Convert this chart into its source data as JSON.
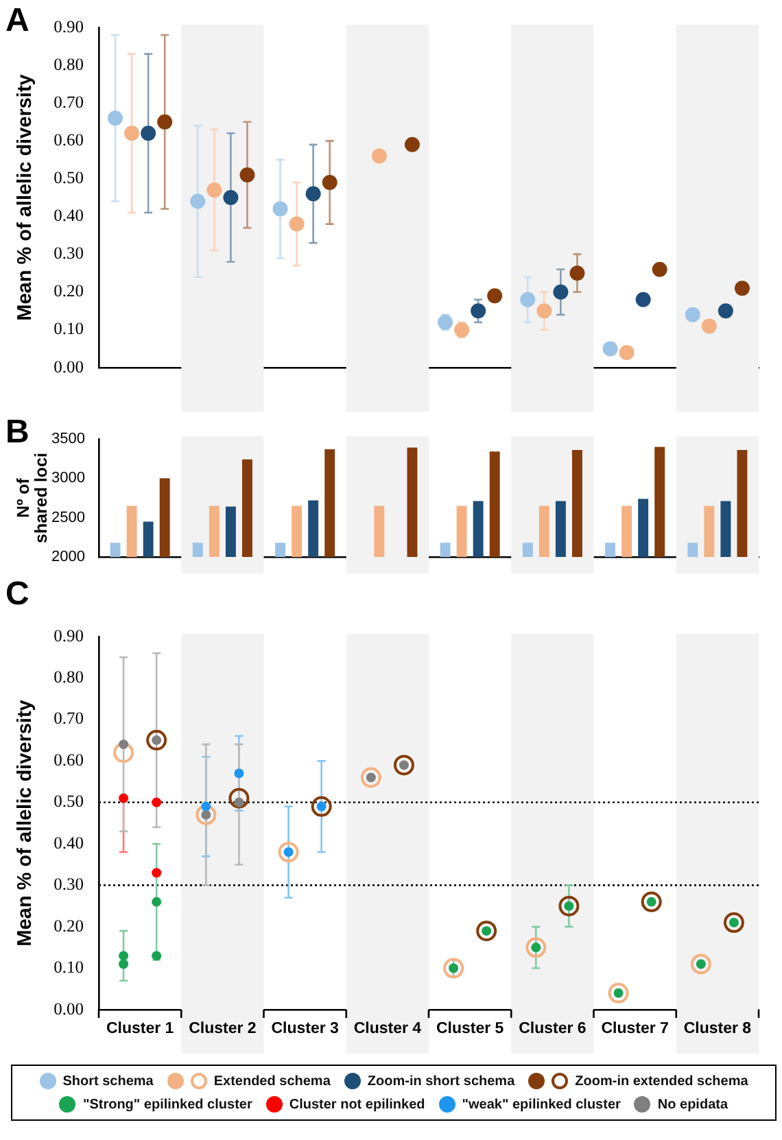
{
  "chart_data": [
    {
      "type": "scatter",
      "title": "A",
      "ylabel": "Mean % of allelic diversity",
      "categories": [
        "Cluster 1",
        "Cluster 2",
        "Cluster 3",
        "Cluster 4",
        "Cluster 5",
        "Cluster 6",
        "Cluster 7",
        "Cluster 8"
      ],
      "ylim": [
        0,
        0.9
      ],
      "yticks": [
        {
          "value": 0,
          "label": "0.00"
        },
        {
          "value": 0.1,
          "label": "0.10"
        },
        {
          "value": 0.2,
          "label": "0.20"
        },
        {
          "value": 0.3,
          "label": "0.30"
        },
        {
          "value": 0.4,
          "label": "0.40"
        },
        {
          "value": 0.5,
          "label": "0.50"
        },
        {
          "value": 0.6,
          "label": "0.60"
        },
        {
          "value": 0.7,
          "label": "0.70"
        },
        {
          "value": 0.8,
          "label": "0.80"
        },
        {
          "value": 0.9,
          "label": "0.90"
        }
      ],
      "tick_labels": "y",
      "legend": "bottom",
      "marker": "circle",
      "bands": [
        {
          "axis": "x",
          "from": "Cluster 2",
          "to": "Cluster 2",
          "color": "#f2f2f2"
        },
        {
          "axis": "x",
          "from": "Cluster 4",
          "to": "Cluster 4",
          "color": "#f2f2f2"
        },
        {
          "axis": "x",
          "from": "Cluster 6",
          "to": "Cluster 6",
          "color": "#f2f2f2"
        },
        {
          "axis": "x",
          "from": "Cluster 8",
          "to": "Cluster 8",
          "color": "#f2f2f2"
        }
      ],
      "series": [
        {
          "name": "Short schema",
          "color": "#9dc3e6",
          "values": [
            0.66,
            0.44,
            0.42,
            null,
            0.12,
            0.18,
            0.05,
            0.14
          ],
          "errors": [
            [
              0.44,
              0.88
            ],
            [
              0.24,
              0.64
            ],
            [
              0.29,
              0.55
            ],
            null,
            [
              0.1,
              0.14
            ],
            [
              0.12,
              0.24
            ],
            null,
            null
          ]
        },
        {
          "name": "Extended schema",
          "color": "#f4b183",
          "values": [
            0.62,
            0.47,
            0.38,
            0.56,
            0.1,
            0.15,
            0.04,
            0.11
          ],
          "errors": [
            [
              0.41,
              0.83
            ],
            [
              0.31,
              0.63
            ],
            [
              0.27,
              0.49
            ],
            null,
            [
              0.08,
              0.12
            ],
            [
              0.1,
              0.2
            ],
            null,
            null
          ]
        },
        {
          "name": "Zoom-in short schema",
          "color": "#1f4e79",
          "values": [
            0.62,
            0.45,
            0.46,
            null,
            0.15,
            0.2,
            0.18,
            0.15
          ],
          "errors": [
            [
              0.41,
              0.83
            ],
            [
              0.28,
              0.62
            ],
            [
              0.33,
              0.59
            ],
            null,
            [
              0.12,
              0.18
            ],
            [
              0.14,
              0.26
            ],
            null,
            null
          ]
        },
        {
          "name": "Zoom-in extended schema",
          "color": "#843c0c",
          "values": [
            0.65,
            0.51,
            0.49,
            0.59,
            0.19,
            0.25,
            0.26,
            0.21
          ],
          "errors": [
            [
              0.42,
              0.88
            ],
            [
              0.37,
              0.65
            ],
            [
              0.38,
              0.6
            ],
            null,
            null,
            [
              0.2,
              0.3
            ],
            null,
            null
          ]
        }
      ]
    },
    {
      "type": "bar",
      "title": "B",
      "ylabel": "Nº of shared loci",
      "categories": [
        "Cluster 1",
        "Cluster 2",
        "Cluster 3",
        "Cluster 4",
        "Cluster 5",
        "Cluster 6",
        "Cluster 7",
        "Cluster 8"
      ],
      "ylim": [
        2000,
        3500
      ],
      "yticks": [
        2000,
        2500,
        3000,
        3500
      ],
      "tick_labels": "y",
      "legend": "bottom",
      "bands": [
        {
          "axis": "x",
          "from": "Cluster 2",
          "to": "Cluster 2",
          "color": "#f2f2f2"
        },
        {
          "axis": "x",
          "from": "Cluster 4",
          "to": "Cluster 4",
          "color": "#f2f2f2"
        },
        {
          "axis": "x",
          "from": "Cluster 6",
          "to": "Cluster 6",
          "color": "#f2f2f2"
        },
        {
          "axis": "x",
          "from": "Cluster 8",
          "to": "Cluster 8",
          "color": "#f2f2f2"
        }
      ],
      "series": [
        {
          "name": "Short schema",
          "color": "#9dc3e6",
          "values": [
            2180,
            2180,
            2180,
            null,
            2180,
            2180,
            2180,
            2180
          ]
        },
        {
          "name": "Extended schema",
          "color": "#f4b183",
          "values": [
            2650,
            2650,
            2650,
            2650,
            2650,
            2650,
            2650,
            2650
          ]
        },
        {
          "name": "Zoom-in short schema",
          "color": "#1f4e79",
          "values": [
            2450,
            2640,
            2720,
            null,
            2710,
            2710,
            2740,
            2710
          ]
        },
        {
          "name": "Zoom-in extended schema",
          "color": "#843c0c",
          "values": [
            3000,
            3240,
            3370,
            3390,
            3340,
            3360,
            3400,
            3360
          ]
        }
      ]
    },
    {
      "type": "scatter",
      "title": "C",
      "ylabel": "Mean % of allelic diversity",
      "categories": [
        "Cluster 1",
        "Cluster 2",
        "Cluster 3",
        "Cluster 4",
        "Cluster 5",
        "Cluster 6",
        "Cluster 7",
        "Cluster 8"
      ],
      "ylim": [
        0,
        0.9
      ],
      "yticks": [
        {
          "value": 0,
          "label": "0.00"
        },
        {
          "value": 0.1,
          "label": "0.10"
        },
        {
          "value": 0.2,
          "label": "0.20"
        },
        {
          "value": 0.3,
          "label": "0.30"
        },
        {
          "value": 0.4,
          "label": "0.40"
        },
        {
          "value": 0.5,
          "label": "0.50"
        },
        {
          "value": 0.6,
          "label": "0.60"
        },
        {
          "value": 0.7,
          "label": "0.70"
        },
        {
          "value": 0.8,
          "label": "0.80"
        },
        {
          "value": 0.9,
          "label": "0.90"
        }
      ],
      "legend": "bottom",
      "marker": "circle",
      "ref_lines": [
        {
          "axis": "y",
          "value": 0.5,
          "color": "#000000",
          "line_style": "dotted"
        },
        {
          "axis": "y",
          "value": 0.3,
          "color": "#000000",
          "line_style": "dotted"
        }
      ],
      "bands": [
        {
          "axis": "x",
          "from": "Cluster 2",
          "to": "Cluster 2",
          "color": "#f2f2f2"
        },
        {
          "axis": "x",
          "from": "Cluster 4",
          "to": "Cluster 4",
          "color": "#f2f2f2"
        },
        {
          "axis": "x",
          "from": "Cluster 6",
          "to": "Cluster 6",
          "color": "#f2f2f2"
        },
        {
          "axis": "x",
          "from": "Cluster 8",
          "to": "Cluster 8",
          "color": "#f2f2f2"
        }
      ],
      "series": [
        {
          "name": "Extended schema",
          "color": "#f4b183",
          "values": [
            0.62,
            0.47,
            0.38,
            0.56,
            0.1,
            0.15,
            0.04,
            0.11
          ]
        },
        {
          "name": "Zoom-in extended schema",
          "color": "#843c0c",
          "values": [
            0.65,
            0.51,
            0.49,
            0.59,
            0.19,
            0.25,
            0.26,
            0.21
          ]
        },
        {
          "name": "\"Strong\" epilinked cluster",
          "color": "#1aa353",
          "x": [
            "Cluster 1",
            "Cluster 1",
            "Cluster 5",
            "Cluster 6",
            "Cluster 7",
            "Cluster 8"
          ],
          "values": [
            0.13,
            0.11,
            0.1,
            0.15,
            0.04,
            0.11
          ],
          "errors": [
            [
              0.07,
              0.19
            ],
            null,
            [
              0.08,
              0.12
            ],
            [
              0.1,
              0.2
            ],
            null,
            null
          ]
        },
        {
          "color": "#1aa353",
          "x": [
            "Cluster 1",
            "Cluster 1",
            "Cluster 5",
            "Cluster 6",
            "Cluster 7",
            "Cluster 8"
          ],
          "values": [
            0.26,
            0.13,
            0.19,
            0.25,
            0.26,
            0.21
          ],
          "errors": [
            [
              0.12,
              0.4
            ],
            null,
            null,
            [
              0.2,
              0.3
            ],
            null,
            null
          ]
        },
        {
          "name": "Cluster not epilinked",
          "color": "#ff0000",
          "x": [
            "Cluster 1"
          ],
          "values": [
            0.51
          ],
          "errors": [
            [
              0.38,
              0.51
            ]
          ]
        },
        {
          "color": "#ff0000",
          "x": [
            "Cluster 1",
            "Cluster 1"
          ],
          "values": [
            0.5,
            0.33
          ]
        },
        {
          "name": "\"weak\" epilinked cluster",
          "color": "#1e96f0",
          "x": [
            "Cluster 2",
            "Cluster 3"
          ],
          "values": [
            0.49,
            0.38
          ],
          "errors": [
            [
              0.37,
              0.61
            ],
            [
              0.27,
              0.49
            ]
          ]
        },
        {
          "color": "#1e96f0",
          "x": [
            "Cluster 2",
            "Cluster 3"
          ],
          "values": [
            0.57,
            0.49
          ],
          "errors": [
            [
              0.48,
              0.66
            ],
            [
              0.38,
              0.6
            ]
          ]
        },
        {
          "name": "No epidata",
          "color": "#808080",
          "x": [
            "Cluster 1",
            "Cluster 2",
            "Cluster 4"
          ],
          "values": [
            0.64,
            0.47,
            0.56
          ],
          "errors": [
            [
              0.43,
              0.85
            ],
            [
              0.3,
              0.64
            ],
            null
          ]
        },
        {
          "color": "#808080",
          "x": [
            "Cluster 1",
            "Cluster 2",
            "Cluster 4"
          ],
          "values": [
            0.65,
            0.5,
            0.59
          ],
          "errors": [
            [
              0.44,
              0.86
            ],
            [
              0.35,
              0.64
            ],
            null
          ]
        }
      ]
    }
  ]
}
